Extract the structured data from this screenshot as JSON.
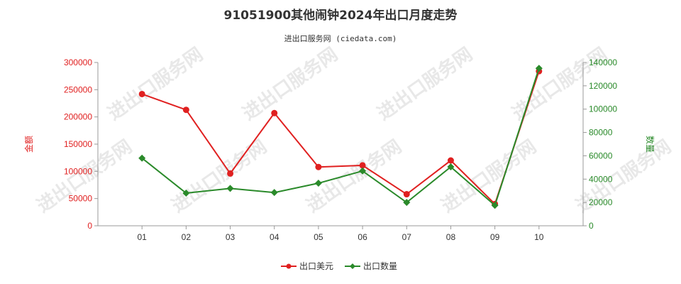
{
  "colors": {
    "export_value": "#e02020",
    "export_quantity": "#2a8a2a"
  },
  "chart_data": {
    "type": "line",
    "title": "91051900其他闹钟2024年出口月度走势",
    "subtitle": "进出口服务网 (ciedata.com)",
    "categories": [
      "01",
      "02",
      "03",
      "04",
      "05",
      "06",
      "07",
      "08",
      "09",
      "10"
    ],
    "y_left": {
      "label": "金额",
      "ticks": [
        "0",
        "50000",
        "100000",
        "150000",
        "200000",
        "250000",
        "300000"
      ],
      "range": [
        0,
        300000
      ]
    },
    "y_right": {
      "label": "数量",
      "ticks": [
        "0",
        "20000",
        "40000",
        "60000",
        "80000",
        "100000",
        "120000",
        "140000"
      ],
      "range": [
        0,
        140000
      ]
    },
    "series": [
      {
        "name": "出口美元",
        "axis": "left",
        "color": "#e02020",
        "values": [
          242000,
          213000,
          96000,
          207000,
          108000,
          111000,
          58000,
          120000,
          40000,
          284000
        ]
      },
      {
        "name": "出口数量",
        "axis": "right",
        "color": "#2a8a2a",
        "values": [
          58000,
          28000,
          32000,
          28500,
          36500,
          47000,
          20000,
          50500,
          17500,
          135000
        ]
      }
    ],
    "legend": "bottom-center",
    "grid": false
  },
  "watermark": "进出口服务网"
}
